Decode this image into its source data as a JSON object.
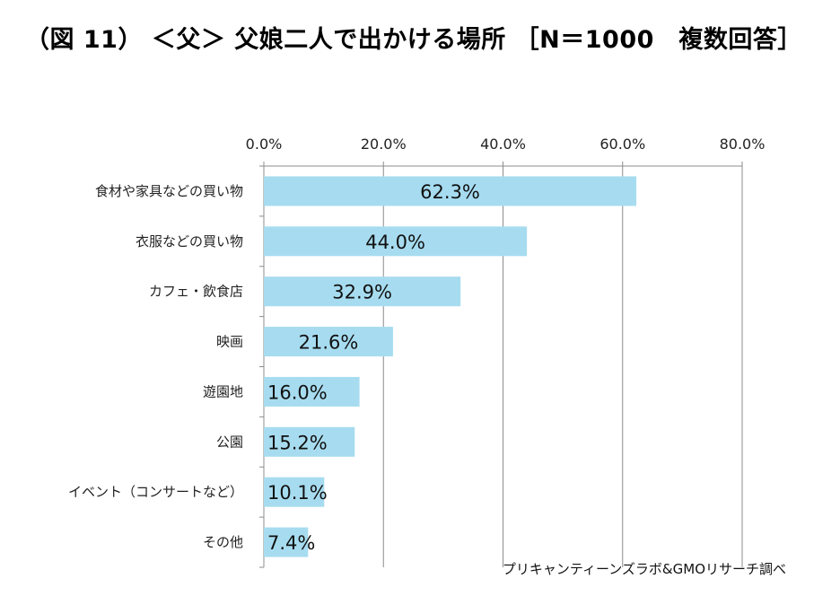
{
  "title": "（図 11） ＜父＞ 父娘二人で出かける場所 ［N＝1000　複数回答］",
  "source": "プリキャンティーンズラボ&GMOリサーチ調べ",
  "colors": {
    "bar": "#a7dcf0",
    "grid": "#8c8c8c"
  },
  "chart_data": {
    "type": "bar",
    "orientation": "horizontal",
    "title": "（図 11） ＜父＞ 父娘二人で出かける場所 ［N＝1000　複数回答］",
    "categories": [
      "食材や家具などの買い物",
      "衣服などの買い物",
      "カフェ・飲食店",
      "映画",
      "遊園地",
      "公園",
      "イベント（コンサートなど）",
      "その他"
    ],
    "values": [
      62.3,
      44.0,
      32.9,
      21.6,
      16.0,
      15.2,
      10.1,
      7.4
    ],
    "value_labels": [
      "62.3%",
      "44.0%",
      "32.9%",
      "21.6%",
      "16.0%",
      "15.2%",
      "10.1%",
      "7.4%"
    ],
    "xlim": [
      0,
      80
    ],
    "xticks": [
      0,
      20,
      40,
      60,
      80
    ],
    "xtick_labels": [
      "0.0%",
      "20.0%",
      "40.0%",
      "60.0%",
      "80.0%"
    ],
    "x_axis_position": "top",
    "grid": true,
    "legend": "none"
  }
}
